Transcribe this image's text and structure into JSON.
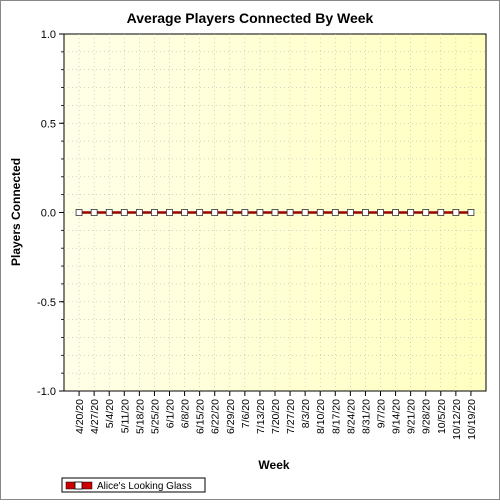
{
  "chart_data": {
    "type": "line",
    "title": "Average Players Connected By Week",
    "xlabel": "Week",
    "ylabel": "Players Connected",
    "ylim": [
      -1.0,
      1.0
    ],
    "y_ticks": [
      "1.0",
      "0.5",
      "0.0",
      "-0.5",
      "-1.0"
    ],
    "y_tick_values": [
      1.0,
      0.5,
      0.0,
      -0.5,
      -1.0
    ],
    "grid": true,
    "legend_position": "bottom-left",
    "categories": [
      "4/20/20",
      "4/27/20",
      "5/4/20",
      "5/11/20",
      "5/18/20",
      "5/25/20",
      "6/1/20",
      "6/8/20",
      "6/15/20",
      "6/22/20",
      "6/29/20",
      "7/6/20",
      "7/13/20",
      "7/20/20",
      "7/27/20",
      "8/3/20",
      "8/10/20",
      "8/17/20",
      "8/24/20",
      "8/31/20",
      "9/7/20",
      "9/14/20",
      "9/21/20",
      "9/28/20",
      "10/5/20",
      "10/12/20",
      "10/19/20"
    ],
    "series": [
      {
        "name": "Alice's Looking Glass",
        "color": "#990000",
        "values": [
          0,
          0,
          0,
          0,
          0,
          0,
          0,
          0,
          0,
          0,
          0,
          0,
          0,
          0,
          0,
          0,
          0,
          0,
          0,
          0,
          0,
          0,
          0,
          0,
          0,
          0,
          0
        ]
      }
    ],
    "colors": {
      "plot_bg_left": "#ffffe8",
      "plot_bg_right": "#ffffc0",
      "line": "#990000",
      "legend_swatch": "#cc0000"
    }
  }
}
